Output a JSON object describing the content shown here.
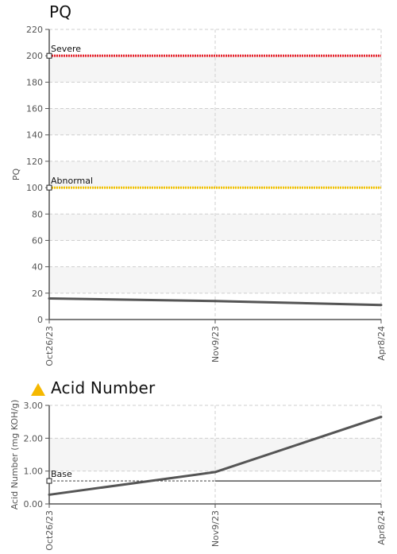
{
  "chart_data": [
    {
      "type": "line",
      "title": "PQ",
      "xlabel": "",
      "ylabel": "PQ",
      "categories": [
        "Oct26/23",
        "Nov9/23",
        "Apr8/24"
      ],
      "yticks": [
        "0",
        "20",
        "40",
        "60",
        "80",
        "100",
        "120",
        "140",
        "160",
        "180",
        "200",
        "220"
      ],
      "ylim": [
        0,
        220
      ],
      "grid": true,
      "series": [
        {
          "values": [
            16,
            14,
            11
          ],
          "color": "#555555"
        }
      ],
      "limits": [
        {
          "label": "Severe",
          "value": 200,
          "color": "#e8202a"
        },
        {
          "label": "Abnormal",
          "value": 100,
          "color": "#f2c200"
        }
      ]
    },
    {
      "type": "line",
      "title": "Acid Number",
      "status_icon": "warning-triangle-icon",
      "status_color": "#f5b800",
      "xlabel": "",
      "ylabel": "Acid Number (mg KOH/g)",
      "categories": [
        "Oct26/23",
        "Nov9/23",
        "Apr8/24"
      ],
      "yticks": [
        "0.00",
        "1.00",
        "2.00",
        "3.00"
      ],
      "ylim": [
        0,
        3
      ],
      "grid": true,
      "series": [
        {
          "values": [
            0.28,
            0.97,
            2.65
          ],
          "color": "#555555"
        }
      ],
      "baseline": {
        "label": "Base",
        "value": 0.7,
        "color": "#555555"
      }
    }
  ]
}
